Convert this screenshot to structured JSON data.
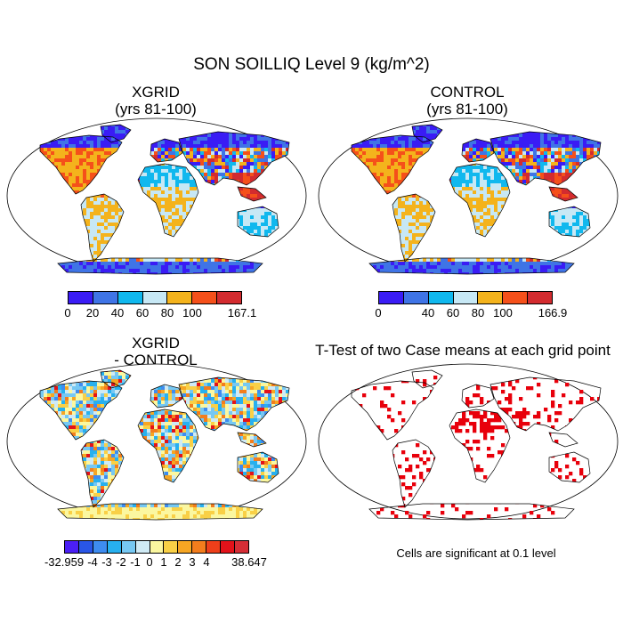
{
  "main_title": "SON SOILLIQ Level 9 (kg/m^2)",
  "panels": [
    {
      "id": "xgrid",
      "title_line1": "XGRID",
      "title_line2": "(yrs 81-100)"
    },
    {
      "id": "control",
      "title_line1": "CONTROL",
      "title_line2": "(yrs 81-100)"
    },
    {
      "id": "diff",
      "title_line1": "XGRID",
      "title_line2": "- CONTROL"
    },
    {
      "id": "ttest",
      "title_line1": "T-Test of two Case means at each grid point",
      "title_line2": ""
    }
  ],
  "colorbars": [
    {
      "id": "xgrid",
      "colors": [
        "#3a1cf5",
        "#3f74e6",
        "#10b8ee",
        "#c7e8f5",
        "#f4b31c",
        "#f5501a",
        "#d32b2f"
      ],
      "labels": [
        "0",
        "20",
        "40",
        "60",
        "80",
        "100",
        "167.1"
      ]
    },
    {
      "id": "control",
      "colors": [
        "#3a1cf5",
        "#3f74e6",
        "#10b8ee",
        "#c7e8f5",
        "#f4b31c",
        "#f5501a",
        "#d32b2f"
      ],
      "labels": [
        "0",
        "40",
        "60",
        "80",
        "100",
        "166.9"
      ]
    },
    {
      "id": "diff",
      "colors": [
        "#4b1ff5",
        "#2956e6",
        "#3e8cf0",
        "#27b0ef",
        "#76c8f3",
        "#cfeaf5",
        "#fbf7a0",
        "#f9d046",
        "#f6a623",
        "#f37d1d",
        "#ee3f1a",
        "#e3121a",
        "#d62e36"
      ],
      "labels": [
        "-32.959",
        "-4",
        "-3",
        "-2",
        "-1",
        "0",
        "1",
        "2",
        "3",
        "4",
        "38.647"
      ]
    }
  ],
  "significance_note": "Cells are significant at 0.1 level",
  "chart_data": [
    {
      "type": "heatmap",
      "title": "XGRID (yrs 81-100)",
      "field": "SON SOILLIQ Level 9",
      "units": "kg/m^2",
      "range": [
        0,
        167.1
      ],
      "levels": [
        0,
        20,
        40,
        60,
        80,
        100,
        167.1
      ]
    },
    {
      "type": "heatmap",
      "title": "CONTROL (yrs 81-100)",
      "field": "SON SOILLIQ Level 9",
      "units": "kg/m^2",
      "range": [
        0,
        166.9
      ],
      "levels": [
        0,
        40,
        60,
        80,
        100,
        166.9
      ]
    },
    {
      "type": "heatmap",
      "title": "XGRID - CONTROL",
      "field": "SON SOILLIQ Level 9",
      "units": "kg/m^2",
      "range": [
        -32.959,
        38.647
      ],
      "levels": [
        -32.959,
        -4,
        -3,
        -2,
        -1,
        0,
        1,
        2,
        3,
        4,
        38.647
      ]
    },
    {
      "type": "heatmap",
      "title": "T-Test of two Case means at each grid point",
      "note": "Cells are significant at 0.1 level"
    }
  ]
}
